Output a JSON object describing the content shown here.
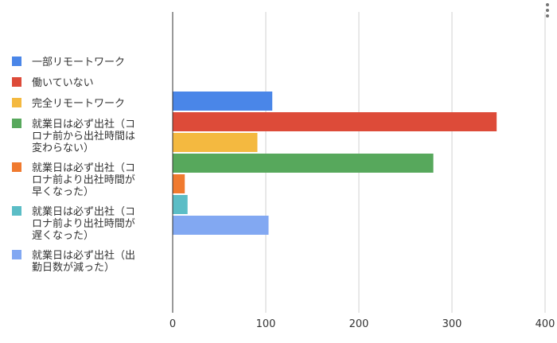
{
  "chart_data": {
    "type": "bar",
    "orientation": "horizontal",
    "title": "",
    "xlabel": "",
    "ylabel": "",
    "xlim": [
      0,
      400
    ],
    "x_ticks": [
      0,
      100,
      200,
      300,
      400
    ],
    "grid": true,
    "legend_position": "left",
    "series": [
      {
        "name": "一部リモートワーク",
        "value": 107,
        "color": "#4a86e8",
        "label_lines": [
          "一部リモートワーク"
        ]
      },
      {
        "name": "働いていない",
        "value": 348,
        "color": "#dd4b39",
        "label_lines": [
          "働いていない"
        ]
      },
      {
        "name": "完全リモートワーク",
        "value": 91,
        "color": "#f4b940",
        "label_lines": [
          "完全リモートワーク"
        ]
      },
      {
        "name": "就業日は必ず出社（コロナ前から出社時間は変わらない）",
        "value": 280,
        "color": "#57a85c",
        "label_lines": [
          "就業日は必ず出社（コ",
          "ロナ前から出社時間は",
          "変わらない）"
        ]
      },
      {
        "name": "就業日は必ず出社（コロナ前より出社時間が早くなった）",
        "value": 13,
        "color": "#f07a2f",
        "label_lines": [
          "就業日は必ず出社（コ",
          "ロナ前より出社時間が",
          "早くなった）"
        ]
      },
      {
        "name": "就業日は必ず出社（コロナ前より出社時間が遅くなった）",
        "value": 16,
        "color": "#5bbdc6",
        "label_lines": [
          "就業日は必ず出社（コ",
          "ロナ前より出社時間が",
          "遅くなった）"
        ]
      },
      {
        "name": "就業日は必ず出社（出勤日数が減った）",
        "value": 103,
        "color": "#82a8f2",
        "label_lines": [
          "就業日は必ず出社（出",
          "勤日数が減った）"
        ]
      }
    ]
  },
  "menu": {
    "icon": "more-vert-icon"
  }
}
